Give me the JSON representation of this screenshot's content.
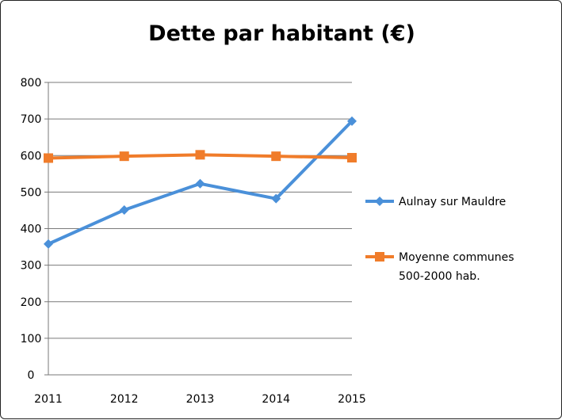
{
  "chart_data": {
    "type": "line",
    "title": "Dette par habitant (€)",
    "xlabel": "",
    "ylabel": "",
    "categories": [
      "2011",
      "2012",
      "2013",
      "2014",
      "2015"
    ],
    "ylim": [
      0,
      800
    ],
    "yticks": [
      0,
      100,
      200,
      300,
      400,
      500,
      600,
      700,
      800
    ],
    "grid": true,
    "legend_position": "right",
    "series": [
      {
        "name": "Aulnay sur Mauldre",
        "values": [
          358,
          451,
          523,
          482,
          694
        ],
        "color": "#4a90d9",
        "marker": "diamond"
      },
      {
        "name_lines": [
          "Moyenne communes",
          "500-2000 hab."
        ],
        "values": [
          593,
          598,
          602,
          598,
          594
        ],
        "color": "#f07c2a",
        "marker": "square"
      }
    ]
  }
}
